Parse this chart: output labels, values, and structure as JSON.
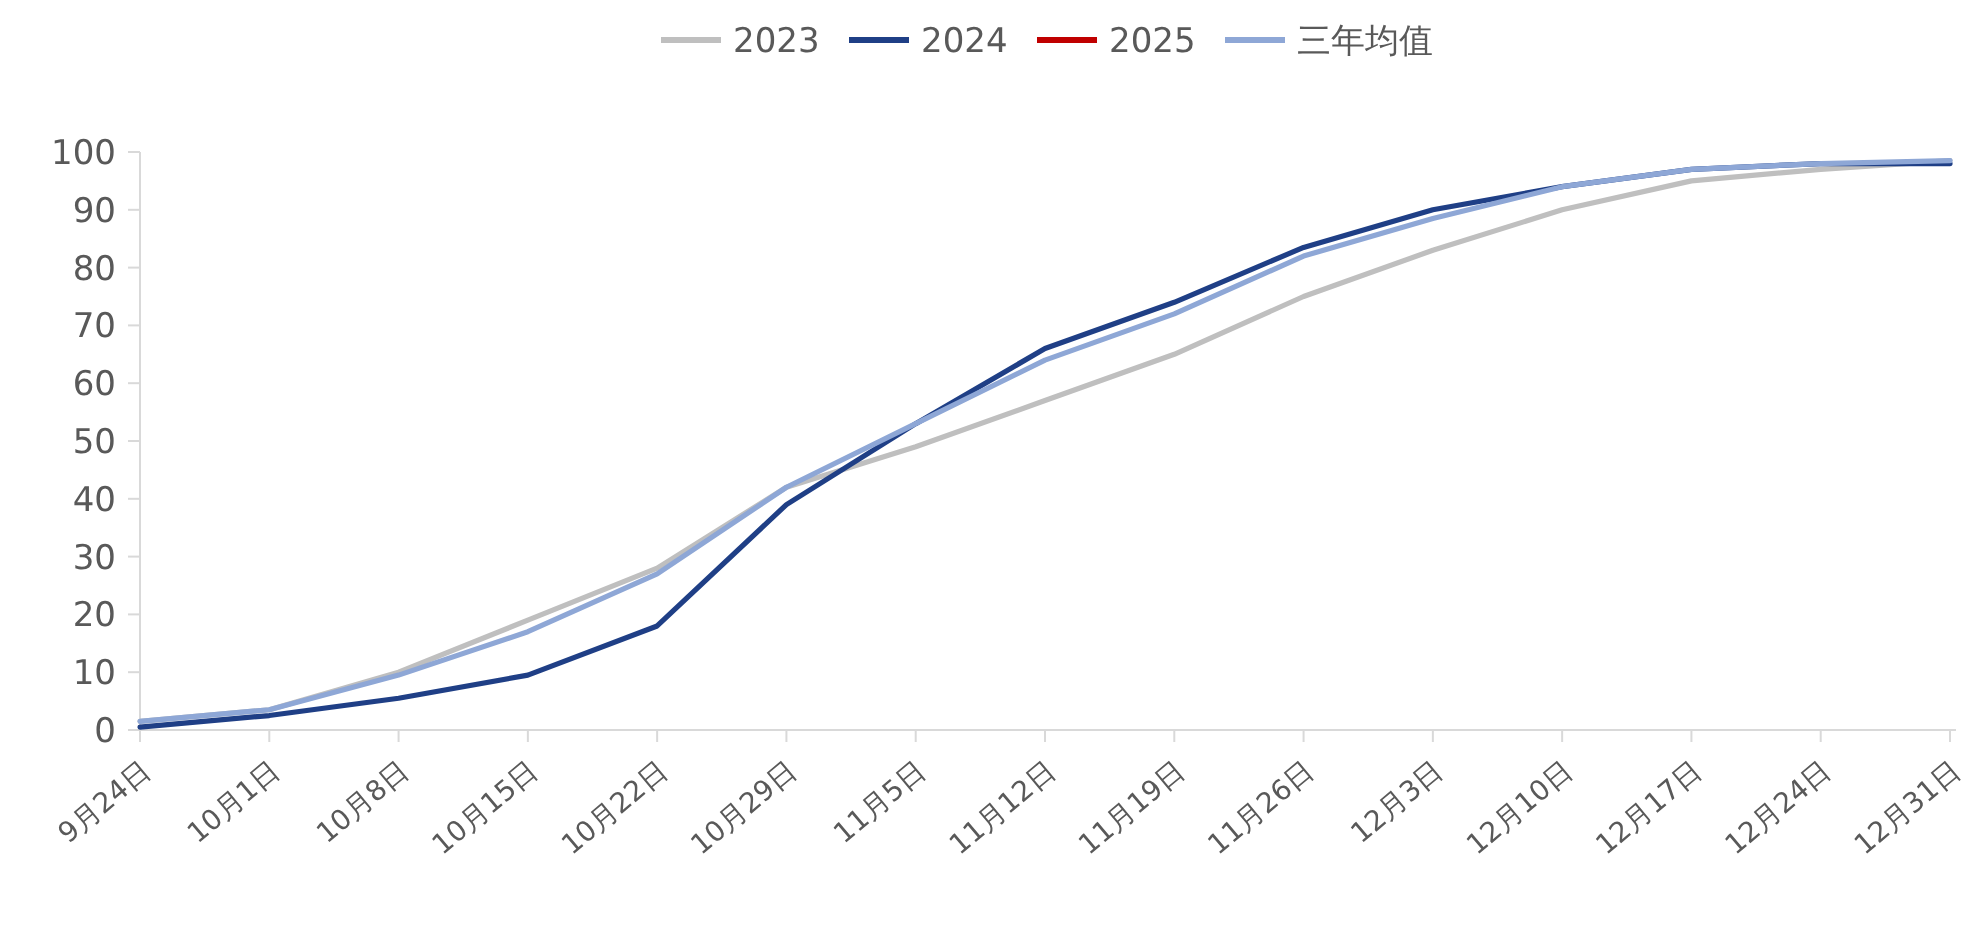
{
  "chart_data": {
    "type": "line",
    "categories": [
      "9月24日",
      "10月1日",
      "10月8日",
      "10月15日",
      "10月22日",
      "10月29日",
      "11月5日",
      "11月12日",
      "11月19日",
      "11月26日",
      "12月3日",
      "12月10日",
      "12月17日",
      "12月24日",
      "12月31日"
    ],
    "ylim": [
      0,
      100
    ],
    "yticks": [
      0,
      10,
      20,
      30,
      40,
      50,
      60,
      70,
      80,
      90,
      100
    ],
    "grid": false,
    "legend": "top",
    "marker": "none",
    "line_style": "solid",
    "series": [
      {
        "name": "2023",
        "color": "#bfbfbf",
        "values": [
          1.5,
          3.5,
          10,
          19,
          28,
          42,
          49,
          57,
          65,
          75,
          83,
          90,
          95,
          97,
          98.5
        ]
      },
      {
        "name": "2024",
        "color": "#1f3f86",
        "values": [
          0.5,
          2.5,
          5.5,
          9.5,
          18,
          39,
          53,
          66,
          74,
          83.5,
          90,
          94,
          97,
          98,
          98
        ]
      },
      {
        "name": "2025",
        "color": "#c00000",
        "values": [
          null,
          null,
          null,
          null,
          null,
          null,
          null,
          null,
          null,
          null,
          null,
          null,
          null,
          null,
          null
        ]
      },
      {
        "name": "三年均值",
        "color": "#8ea7d6",
        "values": [
          1.5,
          3.5,
          9.5,
          17,
          27,
          42,
          53,
          64,
          72,
          82,
          88.5,
          94,
          97,
          98,
          98.5
        ]
      }
    ]
  }
}
